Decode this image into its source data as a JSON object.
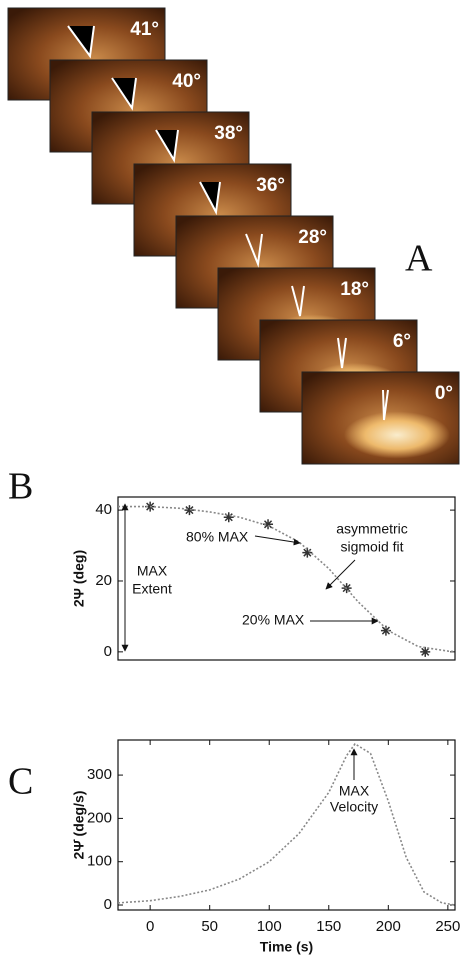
{
  "panel_a": {
    "label": "A",
    "frames": [
      "41°",
      "40°",
      "38°",
      "36°",
      "28°",
      "18°",
      "6°",
      "0°"
    ]
  },
  "chart_data": [
    {
      "type": "scatter",
      "panel_label": "B",
      "y_label": "2Ψ (deg)",
      "xlim": [
        -27,
        256
      ],
      "ylim": [
        -2.3,
        43.7
      ],
      "yticks": [
        0,
        20,
        40
      ],
      "series": [
        {
          "type": "scatter",
          "color": "#333333",
          "x": [
            0,
            33,
            66,
            99,
            132,
            165,
            198,
            231
          ],
          "values": [
            41,
            40,
            38,
            36,
            28,
            18,
            6,
            0
          ]
        },
        {
          "type": "line",
          "color": "#888888",
          "x": [
            -27,
            0,
            25,
            50,
            75,
            100,
            125,
            150,
            175,
            200,
            225,
            250,
            256
          ],
          "values": [
            41,
            41,
            40.5,
            39.5,
            38,
            35.5,
            31,
            23.5,
            14,
            6,
            1.5,
            0.2,
            0.1
          ]
        }
      ],
      "annotations": [
        [
          "80% MAX"
        ],
        [
          "asymmetric",
          "sigmoid fit"
        ],
        [
          "MAX",
          "Extent"
        ],
        [
          "20% MAX"
        ]
      ]
    },
    {
      "type": "line",
      "panel_label": "C",
      "y_label": "2Ψ̇ (deg/s)",
      "x_label": "Time (s)",
      "xlim": [
        -27,
        256
      ],
      "ylim": [
        -11.5,
        381
      ],
      "xticks": [
        0,
        50,
        100,
        150,
        200,
        250
      ],
      "yticks": [
        0,
        100,
        200,
        300
      ],
      "series": [
        {
          "type": "line",
          "color": "#888888",
          "x": [
            -27,
            0,
            25,
            50,
            75,
            100,
            125,
            150,
            165,
            172,
            185,
            200,
            215,
            230,
            245,
            256
          ],
          "values": [
            5,
            10,
            20,
            35,
            60,
            100,
            165,
            260,
            345,
            372,
            350,
            240,
            110,
            30,
            5,
            0
          ]
        }
      ],
      "annotations": [
        [
          "MAX",
          "Velocity"
        ]
      ]
    }
  ]
}
